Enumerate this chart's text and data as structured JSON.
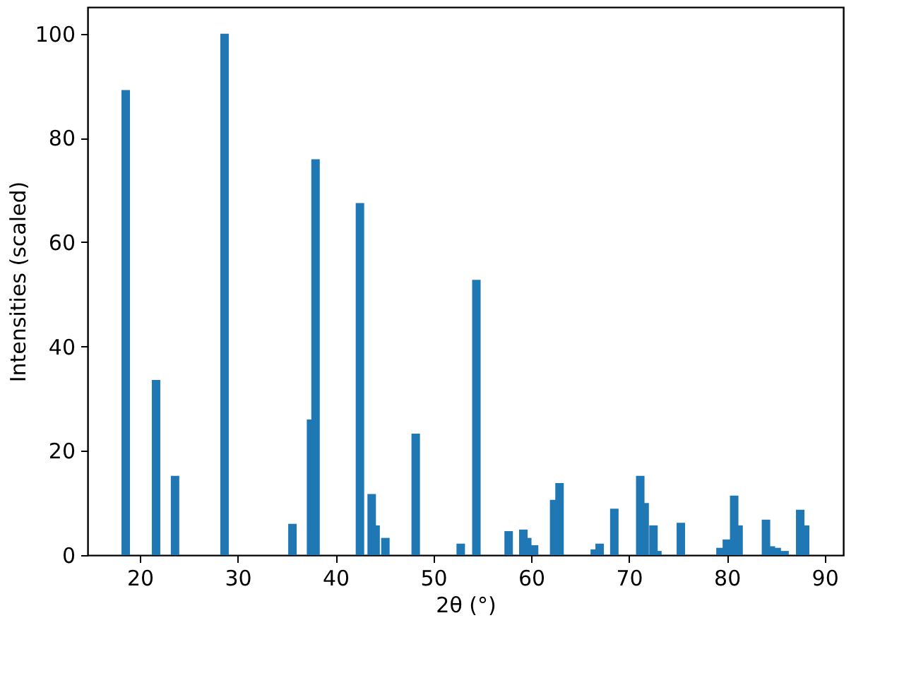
{
  "chart_data": {
    "type": "bar",
    "xlabel": "2θ (°)",
    "ylabel": "Intensities (scaled)",
    "x": [
      18.56,
      21.66,
      23.6,
      28.66,
      35.6,
      37.5,
      37.96,
      42.5,
      43.7,
      44.1,
      45.1,
      48.2,
      52.8,
      54.4,
      57.7,
      59.2,
      59.6,
      60.3,
      62.35,
      62.9,
      66.5,
      67.0,
      68.5,
      71.15,
      71.6,
      72.5,
      72.9,
      75.3,
      79.35,
      80.0,
      80.75,
      81.2,
      84.0,
      84.5,
      85.1,
      85.9,
      87.5,
      88.0
    ],
    "series": [
      {
        "color": "#1f77b4",
        "values": [
          89.2,
          33.6,
          15.2,
          100,
          6.0,
          26.0,
          75.9,
          67.5,
          11.7,
          5.7,
          3.3,
          23.3,
          2.2,
          52.8,
          4.6,
          4.9,
          3.3,
          1.9,
          10.6,
          13.8,
          1.1,
          2.2,
          8.9,
          15.2,
          10.0,
          5.7,
          0.8,
          6.2,
          1.4,
          3.0,
          11.4,
          5.7,
          6.8,
          1.7,
          1.4,
          0.8,
          8.7,
          5.7
        ]
      }
    ],
    "xlim": [
      14.66,
      91.9
    ],
    "xticks": [
      20,
      30,
      40,
      50,
      60,
      70,
      80,
      90
    ],
    "ylim": [
      0,
      105.1
    ],
    "yticks": [
      0,
      20,
      40,
      60,
      80,
      100
    ],
    "grid": false
  }
}
